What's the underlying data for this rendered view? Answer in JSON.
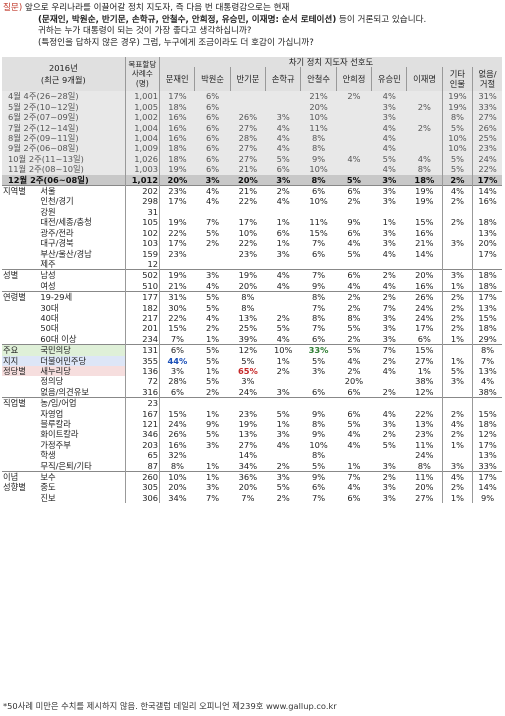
{
  "intro": {
    "tag": "질문)",
    "line1": "앞으로 우리나라를 이끌어갈 정치 지도자, 즉 다음 번 대통령감으로는 현재",
    "line2_bold": "(문재인, 박원순, 반기문, 손학규, 안철수, 안희정, 유승민, 이재명: 순서 로테이션)",
    "line2_rest": " 등이 거론되고 있습니다.",
    "line3": "귀하는 누가 대통령이 되는 것이 가장 좋다고 생각하십니까?",
    "line4": "(특정인을 답하지 않은 경우) 그럼, 누구에게 조금이라도 더 호감이 가십니까?"
  },
  "header": {
    "year": "2016년",
    "period": "(최근 9개월)",
    "sample": [
      "목표할당",
      "사례수",
      "(명)"
    ],
    "group_title": "차기 정치 지도자 선호도",
    "candidates": [
      "문재인",
      "박원순",
      "반기문",
      "손학규",
      "안철수",
      "안희정",
      "유승민",
      "이재명"
    ],
    "other": [
      "기타",
      "인물"
    ],
    "none": [
      "없음/",
      "거절"
    ]
  },
  "rows": [
    {
      "type": "ts",
      "label": "4월 4주(26~28일)",
      "n": "1,001",
      "v": [
        "17%",
        "6%",
        "",
        "",
        "21%",
        "2%",
        "4%",
        "",
        "19%",
        "31%"
      ]
    },
    {
      "type": "ts",
      "label": "5월 2주(10~12일)",
      "n": "1,005",
      "v": [
        "18%",
        "6%",
        "",
        "",
        "20%",
        "",
        "3%",
        "2%",
        "19%",
        "33%"
      ]
    },
    {
      "type": "ts",
      "label": "6월 2주(07~09일)",
      "n": "1,002",
      "v": [
        "16%",
        "6%",
        "26%",
        "3%",
        "10%",
        "",
        "3%",
        "",
        "8%",
        "27%"
      ]
    },
    {
      "type": "ts",
      "label": "7월 2주(12~14일)",
      "n": "1,004",
      "v": [
        "16%",
        "6%",
        "27%",
        "4%",
        "11%",
        "",
        "4%",
        "2%",
        "5%",
        "26%"
      ]
    },
    {
      "type": "ts",
      "label": "8월 2주(09~11일)",
      "n": "1,004",
      "v": [
        "16%",
        "6%",
        "28%",
        "4%",
        "8%",
        "",
        "4%",
        "",
        "10%",
        "25%"
      ]
    },
    {
      "type": "ts",
      "label": "9월 2주(06~08일)",
      "n": "1,009",
      "v": [
        "18%",
        "6%",
        "27%",
        "4%",
        "8%",
        "",
        "4%",
        "",
        "10%",
        "23%"
      ]
    },
    {
      "type": "ts",
      "label": "10월 2주(11~13일)",
      "n": "1,026",
      "v": [
        "18%",
        "6%",
        "27%",
        "5%",
        "9%",
        "4%",
        "5%",
        "4%",
        "5%",
        "24%"
      ]
    },
    {
      "type": "ts",
      "label": "11월 2주(08~10일)",
      "n": "1,003",
      "v": [
        "19%",
        "6%",
        "21%",
        "6%",
        "10%",
        "",
        "4%",
        "8%",
        "5%",
        "22%"
      ]
    },
    {
      "type": "tsb",
      "label": "12월 2주(06~08일)",
      "n": "1,012",
      "v": [
        "20%",
        "3%",
        "20%",
        "3%",
        "8%",
        "5%",
        "3%",
        "18%",
        "2%",
        "17%"
      ]
    },
    {
      "g": "지역별",
      "label": "서울",
      "n": "202",
      "v": [
        "23%",
        "4%",
        "21%",
        "2%",
        "6%",
        "6%",
        "3%",
        "19%",
        "4%",
        "14%"
      ],
      "dl": true
    },
    {
      "label": "인천/경기",
      "n": "298",
      "v": [
        "17%",
        "4%",
        "22%",
        "4%",
        "10%",
        "2%",
        "3%",
        "19%",
        "2%",
        "16%"
      ]
    },
    {
      "label": "강원",
      "n": "31",
      "v": [
        "",
        "",
        "",
        "",
        "",
        "",
        "",
        "",
        "",
        ""
      ]
    },
    {
      "label": "대전/세종/충청",
      "n": "105",
      "v": [
        "19%",
        "7%",
        "17%",
        "1%",
        "11%",
        "9%",
        "1%",
        "15%",
        "2%",
        "18%"
      ]
    },
    {
      "label": "광주/전라",
      "n": "102",
      "v": [
        "22%",
        "5%",
        "10%",
        "6%",
        "15%",
        "6%",
        "3%",
        "16%",
        "",
        "13%"
      ]
    },
    {
      "label": "대구/경북",
      "n": "103",
      "v": [
        "17%",
        "2%",
        "22%",
        "1%",
        "7%",
        "4%",
        "3%",
        "21%",
        "3%",
        "20%"
      ]
    },
    {
      "label": "부산/울산/경남",
      "n": "159",
      "v": [
        "23%",
        "",
        "23%",
        "3%",
        "6%",
        "5%",
        "4%",
        "14%",
        "",
        "17%"
      ]
    },
    {
      "label": "제주",
      "n": "12",
      "v": [
        "",
        "",
        "",
        "",
        "",
        "",
        "",
        "",
        "",
        ""
      ]
    },
    {
      "g": "성별",
      "label": "남성",
      "n": "502",
      "v": [
        "19%",
        "3%",
        "19%",
        "4%",
        "7%",
        "6%",
        "2%",
        "20%",
        "3%",
        "18%"
      ],
      "dl": true
    },
    {
      "label": "여성",
      "n": "510",
      "v": [
        "21%",
        "4%",
        "20%",
        "4%",
        "9%",
        "4%",
        "4%",
        "16%",
        "1%",
        "18%"
      ]
    },
    {
      "g": "연령별",
      "label": "19-29세",
      "n": "177",
      "v": [
        "31%",
        "5%",
        "8%",
        "",
        "8%",
        "2%",
        "2%",
        "26%",
        "2%",
        "17%"
      ],
      "dl": true
    },
    {
      "label": "30대",
      "n": "182",
      "v": [
        "30%",
        "5%",
        "8%",
        "",
        "7%",
        "2%",
        "7%",
        "24%",
        "2%",
        "13%"
      ]
    },
    {
      "label": "40대",
      "n": "217",
      "v": [
        "22%",
        "4%",
        "13%",
        "2%",
        "8%",
        "8%",
        "3%",
        "24%",
        "2%",
        "15%"
      ]
    },
    {
      "label": "50대",
      "n": "201",
      "v": [
        "15%",
        "2%",
        "25%",
        "5%",
        "7%",
        "5%",
        "3%",
        "17%",
        "2%",
        "18%"
      ]
    },
    {
      "label": "60대 이상",
      "n": "234",
      "v": [
        "7%",
        "1%",
        "39%",
        "4%",
        "6%",
        "2%",
        "3%",
        "6%",
        "1%",
        "29%"
      ]
    },
    {
      "g": "주요",
      "gc": "bg-green",
      "label": "국민의당",
      "n": "131",
      "v": [
        "6%",
        "5%",
        "12%",
        "10%",
        "33%",
        "5%",
        "7%",
        "15%",
        "",
        "8%"
      ],
      "hl": {
        "i": 4,
        "c": "hl-green"
      },
      "dl": true
    },
    {
      "g": "지지",
      "gc": "bg-blue",
      "label": "더불어민주당",
      "n": "355",
      "v": [
        "44%",
        "5%",
        "5%",
        "1%",
        "5%",
        "4%",
        "2%",
        "27%",
        "1%",
        "7%"
      ],
      "hl": {
        "i": 0,
        "c": "hl-blue"
      }
    },
    {
      "g": "정당별",
      "gc": "bg-red",
      "label": "새누리당",
      "n": "136",
      "v": [
        "3%",
        "1%",
        "65%",
        "2%",
        "3%",
        "2%",
        "4%",
        "1%",
        "5%",
        "13%"
      ],
      "hl": {
        "i": 2,
        "c": "hl-red"
      }
    },
    {
      "label": "정의당",
      "n": "72",
      "v": [
        "28%",
        "5%",
        "3%",
        "",
        "",
        "20%",
        "",
        "38%",
        "3%",
        "4%"
      ]
    },
    {
      "label": "없음/의견유보",
      "n": "316",
      "v": [
        "6%",
        "2%",
        "24%",
        "3%",
        "6%",
        "6%",
        "2%",
        "12%",
        "",
        "38%"
      ]
    },
    {
      "g": "직업별",
      "label": "농/임/어업",
      "n": "23",
      "v": [
        "",
        "",
        "",
        "",
        "",
        "",
        "",
        "",
        "",
        ""
      ],
      "dl": true
    },
    {
      "label": "자영업",
      "n": "167",
      "v": [
        "15%",
        "1%",
        "23%",
        "5%",
        "9%",
        "6%",
        "4%",
        "22%",
        "2%",
        "15%"
      ]
    },
    {
      "label": "블루칼라",
      "n": "121",
      "v": [
        "24%",
        "9%",
        "19%",
        "1%",
        "8%",
        "5%",
        "3%",
        "13%",
        "4%",
        "18%"
      ]
    },
    {
      "label": "화이트칼라",
      "n": "346",
      "v": [
        "26%",
        "5%",
        "13%",
        "3%",
        "9%",
        "4%",
        "2%",
        "23%",
        "2%",
        "12%"
      ]
    },
    {
      "label": "가정주부",
      "n": "203",
      "v": [
        "16%",
        "3%",
        "27%",
        "4%",
        "10%",
        "4%",
        "5%",
        "11%",
        "1%",
        "17%"
      ]
    },
    {
      "label": "학생",
      "n": "65",
      "v": [
        "32%",
        "",
        "14%",
        "",
        "8%",
        "",
        "",
        "24%",
        "",
        "13%"
      ]
    },
    {
      "label": "무직/은퇴/기타",
      "n": "87",
      "v": [
        "8%",
        "1%",
        "34%",
        "2%",
        "5%",
        "1%",
        "3%",
        "8%",
        "3%",
        "33%"
      ]
    },
    {
      "g": "이념",
      "label": "보수",
      "n": "260",
      "v": [
        "10%",
        "1%",
        "36%",
        "3%",
        "9%",
        "7%",
        "2%",
        "11%",
        "4%",
        "17%"
      ],
      "dl": true
    },
    {
      "g": "성향별",
      "label": "중도",
      "n": "305",
      "v": [
        "20%",
        "3%",
        "20%",
        "5%",
        "6%",
        "4%",
        "3%",
        "20%",
        "2%",
        "14%"
      ]
    },
    {
      "label": "진보",
      "n": "306",
      "v": [
        "34%",
        "7%",
        "7%",
        "2%",
        "7%",
        "6%",
        "3%",
        "27%",
        "1%",
        "9%"
      ]
    }
  ],
  "footnote": "*50사례 미만은 수치를 제시하지 않음. 한국갤럽 데일리 오피니언 제239호 www.gallup.co.kr"
}
